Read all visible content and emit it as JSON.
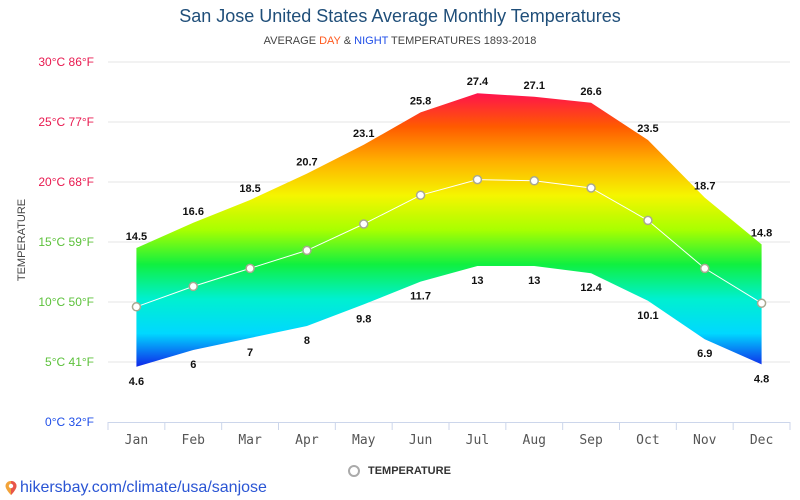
{
  "header": {
    "title": "San Jose United States Average Monthly Temperatures",
    "subtitle_prefix": "AVERAGE ",
    "subtitle_day": "DAY",
    "subtitle_amp": " & ",
    "subtitle_night": "NIGHT",
    "subtitle_suffix": " TEMPERATURES 1893-2018"
  },
  "colors": {
    "day_accent": "#ff5a1f",
    "night_accent": "#1f4ee8",
    "title": "#1f4e79",
    "tick_hot": "#e8194f",
    "tick_mild": "#5cc13b",
    "tick_cold": "#1f4ee8",
    "gradient_stops": [
      "#ff1050",
      "#ff5a00",
      "#ffb000",
      "#f5f500",
      "#a8ff00",
      "#10f040",
      "#00f0d0",
      "#00d8ff",
      "#1020e8"
    ]
  },
  "legend": {
    "label": "TEMPERATURE"
  },
  "source": {
    "text": "hikersbay.com/climate/usa/sanjose"
  },
  "chart_data": {
    "type": "area",
    "title": "San Jose United States Average Monthly Temperatures",
    "subtitle": "AVERAGE DAY & NIGHT TEMPERATURES 1893-2018",
    "xlabel": "",
    "ylabel": "TEMPERATURE",
    "categories": [
      "Jan",
      "Feb",
      "Mar",
      "Apr",
      "May",
      "Jun",
      "Jul",
      "Aug",
      "Sep",
      "Oct",
      "Nov",
      "Dec"
    ],
    "ylim": [
      0,
      30
    ],
    "yticks": [
      {
        "value": 30,
        "label": "30°C 86°F",
        "color": "#e8194f"
      },
      {
        "value": 25,
        "label": "25°C 77°F",
        "color": "#e8194f"
      },
      {
        "value": 20,
        "label": "20°C 68°F",
        "color": "#e8194f"
      },
      {
        "value": 15,
        "label": "15°C 59°F",
        "color": "#5cc13b"
      },
      {
        "value": 10,
        "label": "10°C 50°F",
        "color": "#5cc13b"
      },
      {
        "value": 5,
        "label": "5°C 41°F",
        "color": "#5cc13b"
      },
      {
        "value": 0,
        "label": "0°C 32°F",
        "color": "#1f4ee8"
      }
    ],
    "grid": true,
    "legend_position": "bottom",
    "series": [
      {
        "name": "Day",
        "values": [
          14.5,
          16.6,
          18.5,
          20.7,
          23.1,
          25.8,
          27.4,
          27.1,
          26.6,
          23.5,
          18.7,
          14.8
        ],
        "labels": [
          "14.5",
          "16.6",
          "18.5",
          "20.7",
          "23.1",
          "25.8",
          "27.4",
          "27.1",
          "26.6",
          "23.5",
          "18.7",
          "14.8"
        ]
      },
      {
        "name": "Night",
        "values": [
          4.6,
          6,
          7,
          8,
          9.8,
          11.7,
          13,
          13,
          12.4,
          10.1,
          6.9,
          4.8
        ],
        "labels": [
          "4.6",
          "6",
          "7",
          "8",
          "9.8",
          "11.7",
          "13",
          "13",
          "12.4",
          "10.1",
          "6.9",
          "4.8"
        ]
      },
      {
        "name": "TEMPERATURE",
        "values": [
          9.6,
          11.3,
          12.8,
          14.3,
          16.5,
          18.9,
          20.2,
          20.1,
          19.5,
          16.8,
          12.8,
          9.9
        ]
      }
    ]
  }
}
